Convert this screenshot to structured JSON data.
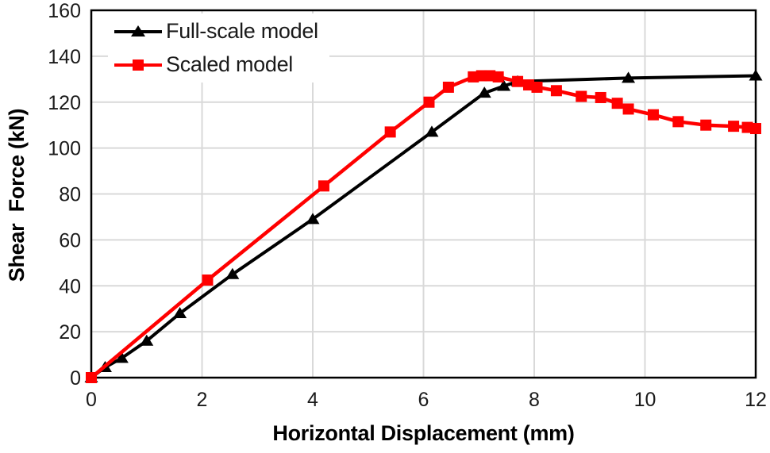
{
  "chart_data": {
    "type": "line",
    "title": "",
    "xlabel": "Horizontal Displacement (mm)",
    "ylabel": "Shear  Force (kN)",
    "xlim": [
      0,
      12
    ],
    "ylim": [
      0,
      160
    ],
    "x_ticks": [
      0,
      2,
      4,
      6,
      8,
      10,
      12
    ],
    "y_ticks": [
      0,
      20,
      40,
      60,
      80,
      100,
      120,
      140,
      160
    ],
    "grid": true,
    "gridline_color": "#d9d9d9",
    "border_color": "#000000",
    "legend_position": "top-left-inside",
    "series": [
      {
        "name": "Full-scale model",
        "color": "#000000",
        "marker": "triangle",
        "line_width": 4,
        "points": [
          [
            0,
            0
          ],
          [
            0.25,
            4.5
          ],
          [
            0.55,
            8.5
          ],
          [
            1.0,
            16
          ],
          [
            1.6,
            28
          ],
          [
            2.55,
            45
          ],
          [
            4.0,
            69
          ],
          [
            6.15,
            107
          ],
          [
            7.1,
            124
          ],
          [
            7.45,
            127
          ],
          [
            7.7,
            129
          ],
          [
            9.7,
            130.5
          ],
          [
            12,
            131.5
          ]
        ]
      },
      {
        "name": "Scaled model",
        "color": "#ff0000",
        "marker": "square",
        "line_width": 4.5,
        "points": [
          [
            0,
            0
          ],
          [
            2.1,
            42.5
          ],
          [
            4.2,
            83.5
          ],
          [
            5.4,
            107
          ],
          [
            6.1,
            120
          ],
          [
            6.45,
            126.5
          ],
          [
            6.9,
            131
          ],
          [
            7.05,
            131.5
          ],
          [
            7.2,
            131.5
          ],
          [
            7.35,
            131
          ],
          [
            7.7,
            129
          ],
          [
            7.9,
            127.5
          ],
          [
            8.05,
            126.5
          ],
          [
            8.4,
            125
          ],
          [
            8.85,
            122.5
          ],
          [
            9.2,
            122
          ],
          [
            9.5,
            119.5
          ],
          [
            9.7,
            117
          ],
          [
            10.15,
            114.5
          ],
          [
            10.6,
            111.5
          ],
          [
            11.1,
            110
          ],
          [
            11.6,
            109.5
          ],
          [
            11.85,
            109
          ],
          [
            12,
            108.5
          ]
        ]
      }
    ]
  }
}
